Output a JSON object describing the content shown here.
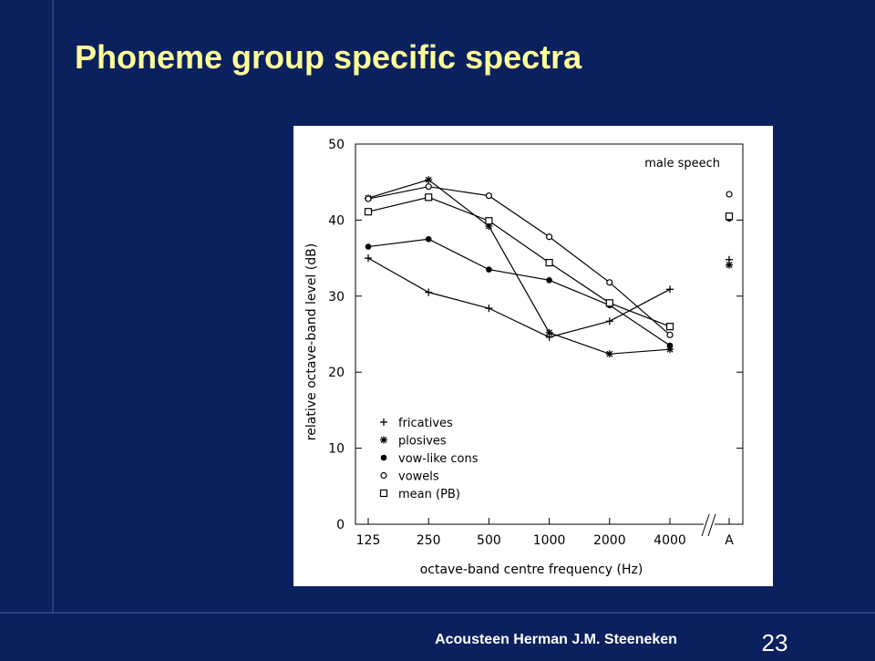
{
  "slide": {
    "title": "Phoneme group specific spectra",
    "footer": "Acousteen Herman J.M. Steeneken",
    "page_number": "23"
  },
  "chart_data": {
    "type": "line",
    "annotation": "male speech",
    "x_label": "octave-band centre frequency (Hz)",
    "y_label": "relative octave-band level (dB)",
    "categories": [
      "125",
      "250",
      "500",
      "1000",
      "2000",
      "4000"
    ],
    "overall_label": "A",
    "ylim": [
      0,
      50
    ],
    "yticks": [
      0,
      10,
      20,
      30,
      40,
      50
    ],
    "series": [
      {
        "name": "fricatives",
        "marker": "plus",
        "values": [
          35,
          30.5,
          28.4,
          24.6,
          26.7,
          30.9
        ],
        "overall": 34.8
      },
      {
        "name": "plosives",
        "marker": "asterisk",
        "values": [
          42.9,
          45.3,
          39.2,
          25.2,
          22.4,
          23.0
        ],
        "overall": 34.1
      },
      {
        "name": "vow-like cons",
        "marker": "dot",
        "values": [
          36.5,
          37.5,
          33.5,
          32.1,
          28.8,
          23.5
        ],
        "overall": 40.2
      },
      {
        "name": "vowels",
        "marker": "circle",
        "values": [
          42.8,
          44.4,
          43.2,
          37.8,
          31.8,
          24.9
        ],
        "overall": 43.4
      },
      {
        "name": "mean (PB)",
        "marker": "square",
        "values": [
          41.1,
          43.0,
          39.9,
          34.4,
          29.1,
          26.0
        ],
        "overall": 40.5
      }
    ]
  }
}
